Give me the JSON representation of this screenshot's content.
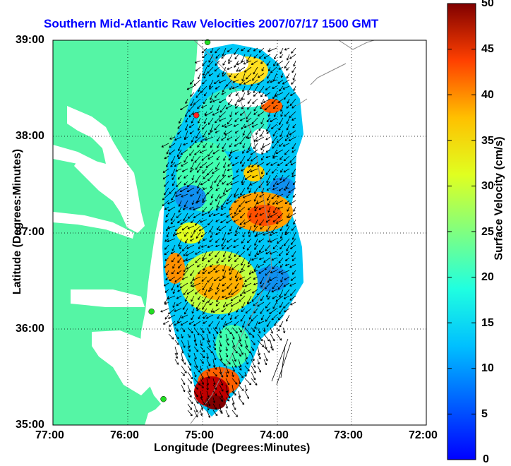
{
  "title": "Southern Mid-Atlantic Raw Velocities 2007/07/17 1500 GMT",
  "xlabel": "Longitude (Degrees:Minutes)",
  "ylabel": "Latitude (Degrees:Minutes)",
  "colorbar_label": "Surface Velocity (cm/s)",
  "x_ticks": [
    "77:00",
    "76:00",
    "75:00",
    "74:00",
    "73:00",
    "72:00"
  ],
  "y_ticks": [
    "39:00",
    "38:00",
    "37:00",
    "36:00",
    "35:00"
  ],
  "colorbar_ticks": [
    "50",
    "45",
    "40",
    "35",
    "30",
    "25",
    "20",
    "15",
    "10",
    "5",
    "0"
  ],
  "colors": {
    "land": "#55f5a5",
    "title": "#0000ff",
    "station_green": "#22dd22",
    "station_red": "#ff2222"
  },
  "map": {
    "xlim": [
      -77,
      -72
    ],
    "ylim": [
      35,
      39
    ],
    "colorbar_range": [
      0,
      50
    ],
    "grid": true,
    "colormap": "jet"
  },
  "stations": [
    {
      "lon": -74.93,
      "lat": 38.98,
      "color": "green"
    },
    {
      "lon": -75.08,
      "lat": 38.22,
      "color": "red"
    },
    {
      "lon": -75.68,
      "lat": 36.18,
      "color": "green"
    },
    {
      "lon": -75.52,
      "lat": 35.27,
      "color": "green"
    }
  ]
}
